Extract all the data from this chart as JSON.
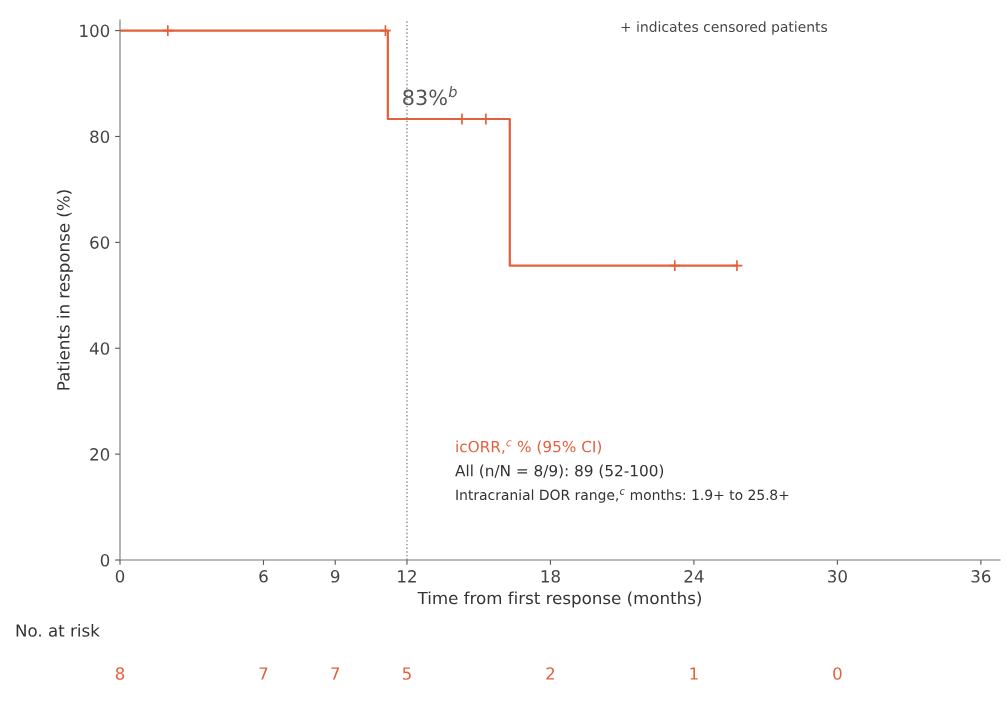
{
  "chart_data": {
    "type": "step",
    "xlabel": "Time from first response (months)",
    "ylabel": "Patients in response (%)",
    "series": [
      {
        "color": "#e2603c",
        "x": [
          0,
          11.2,
          16.3,
          25.8
        ],
        "values": [
          100,
          83.3,
          55.6,
          55.6
        ]
      },
      {
        "type": "scatter",
        "color": "#e2603c",
        "marker": "cross",
        "x": [
          2,
          11.1,
          14.3,
          15.3,
          23.2,
          25.8
        ],
        "values": [
          100,
          100,
          83.3,
          83.3,
          55.6,
          55.6
        ]
      }
    ],
    "xlim": [
      0,
      36.8
    ],
    "xticks": [
      0,
      6,
      9,
      12,
      18,
      24,
      30,
      36
    ],
    "ylim": [
      0,
      102
    ],
    "yticks": [
      0,
      20,
      40,
      60,
      80,
      100
    ],
    "ref_lines": [
      {
        "axis": "x",
        "value": 12,
        "color": "#888888",
        "line_style": "dotted"
      }
    ],
    "grid": false,
    "legend": false,
    "annotations": [
      "+ indicates censored patients",
      {
        "text": "83%$^{b}$",
        "x": 11.2,
        "y": 83.3
      },
      "icORR,$^{c}$ % (95% CI)",
      "All (n/N = 8/9): 89 (52-100)",
      "Intracranial DOR range,$^{c}$ months: 1.9+ to 25.8+",
      "No. at risk",
      "8",
      "7",
      "7",
      "5",
      "2",
      "1",
      "0"
    ]
  }
}
